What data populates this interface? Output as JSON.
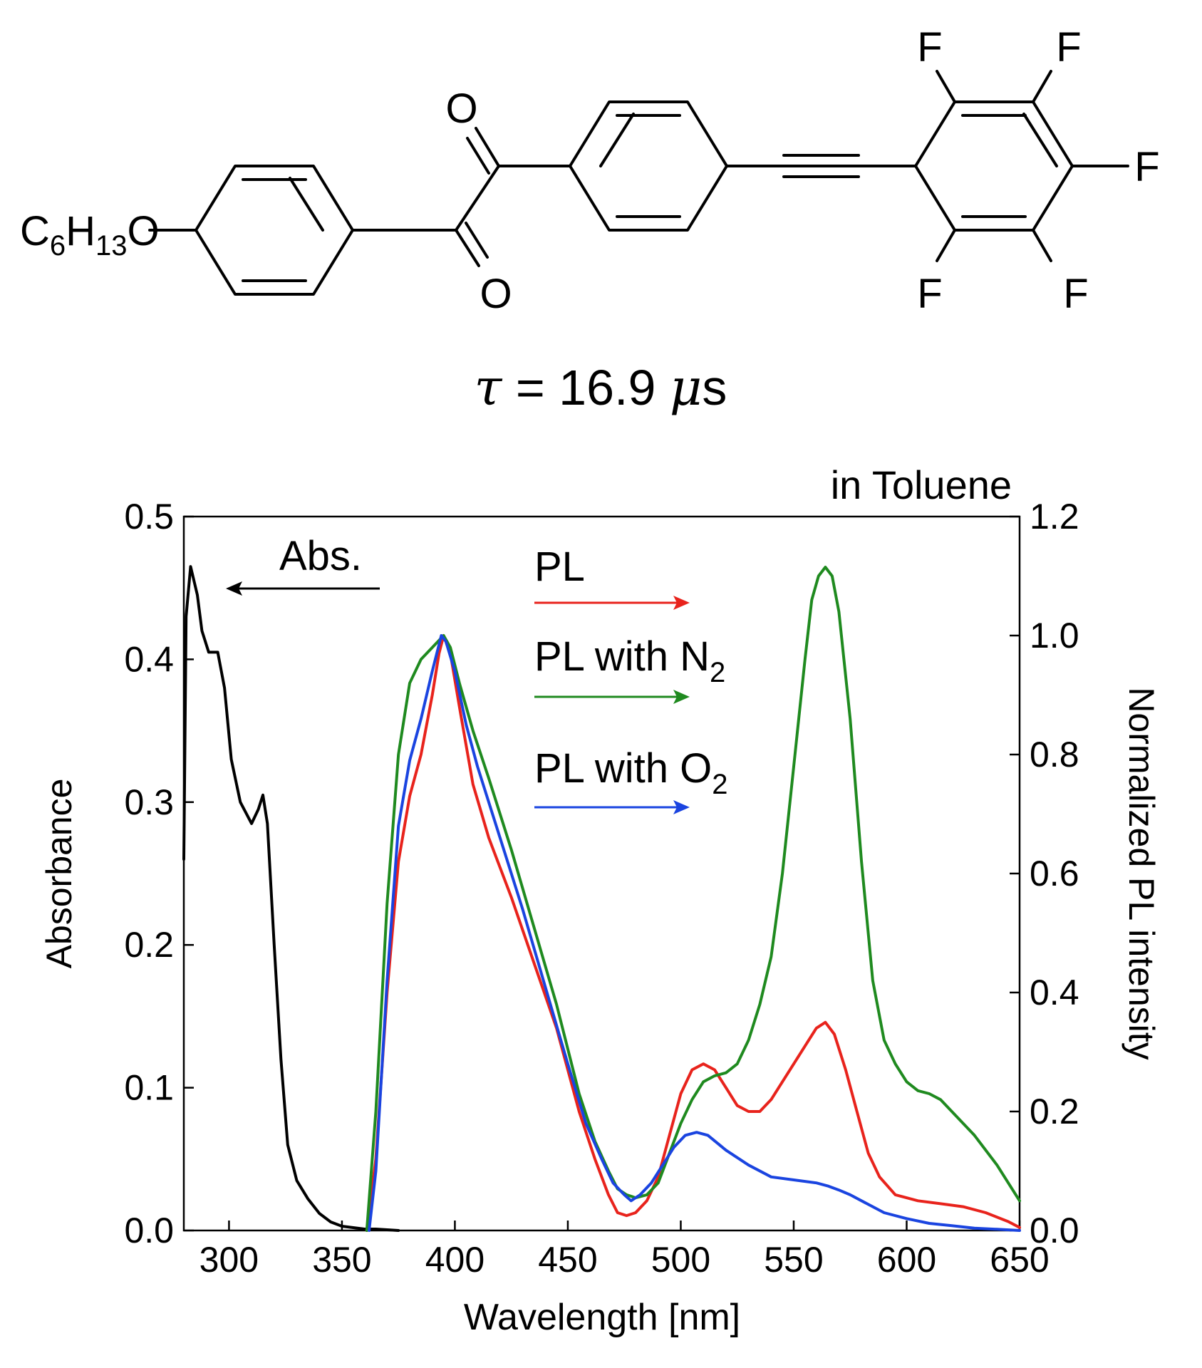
{
  "molecule": {
    "substituent": {
      "main": "C",
      "sub1": "6",
      "mid": "H",
      "sub2": "13",
      "end": "O"
    },
    "oxygen_top": "O",
    "oxygen_bottom": "O",
    "fluorine": "F"
  },
  "lifetime": {
    "symbol": "τ",
    "equals_value": " = 16.9 ",
    "unit_symbol": "μ",
    "unit_rest": "s"
  },
  "chart_data": {
    "type": "line",
    "solvent_note": "in Toluene",
    "xlabel": "Wavelength [nm]",
    "ylabel_left": "Absorbance",
    "ylabel_right": "Normalized PL intensity",
    "xlim": [
      280,
      650
    ],
    "ylim_left": [
      0,
      0.5
    ],
    "ylim_right": [
      0,
      1.2
    ],
    "x_ticks": [
      "300",
      "350",
      "400",
      "450",
      "500",
      "550",
      "600",
      "650"
    ],
    "x_tick_values": [
      300,
      350,
      400,
      450,
      500,
      550,
      600,
      650
    ],
    "y_left_ticks": [
      "0.0",
      "0.1",
      "0.2",
      "0.3",
      "0.4",
      "0.5"
    ],
    "y_left_tick_values": [
      0,
      0.1,
      0.2,
      0.3,
      0.4,
      0.5
    ],
    "y_right_ticks": [
      "0.0",
      "0.2",
      "0.4",
      "0.6",
      "0.8",
      "1.0",
      "1.2"
    ],
    "y_right_tick_values": [
      0,
      0.2,
      0.4,
      0.6,
      0.8,
      1.0,
      1.2
    ],
    "grid": false,
    "annotations": {
      "abs": "Abs.",
      "pl": "PL",
      "pl_n2": {
        "main": "PL with N",
        "sub": "2"
      },
      "pl_o2": {
        "main": "PL with O",
        "sub": "2"
      }
    },
    "colors": {
      "abs": "#000000",
      "pl": "#e8231c",
      "pl_n2": "#1f8a1f",
      "pl_o2": "#1a44e0"
    },
    "series": [
      {
        "key": "abs",
        "axis": "left",
        "color": "#000000",
        "x": [
          280,
          281,
          283,
          286,
          288,
          291,
          295,
          298,
          301,
          305,
          310,
          313,
          315,
          317,
          320,
          323,
          326,
          330,
          335,
          340,
          345,
          350,
          355,
          360,
          365,
          370,
          375
        ],
        "y": [
          0.26,
          0.43,
          0.465,
          0.445,
          0.42,
          0.405,
          0.405,
          0.38,
          0.33,
          0.3,
          0.285,
          0.295,
          0.305,
          0.285,
          0.2,
          0.12,
          0.06,
          0.035,
          0.022,
          0.012,
          0.006,
          0.003,
          0.002,
          0.001,
          0.001,
          0.0005,
          0.0
        ]
      },
      {
        "key": "pl",
        "axis": "right",
        "color": "#e8231c",
        "x": [
          361,
          365,
          370,
          375,
          380,
          385,
          390,
          393,
          395,
          398,
          402,
          408,
          415,
          425,
          435,
          445,
          455,
          462,
          468,
          472,
          476,
          480,
          485,
          490,
          495,
          500,
          505,
          510,
          515,
          520,
          525,
          530,
          535,
          540,
          545,
          550,
          555,
          560,
          564,
          568,
          573,
          578,
          583,
          588,
          595,
          605,
          615,
          625,
          635,
          645,
          650
        ],
        "y": [
          0.0,
          0.12,
          0.4,
          0.62,
          0.73,
          0.8,
          0.9,
          0.97,
          1.0,
          0.97,
          0.88,
          0.75,
          0.66,
          0.56,
          0.45,
          0.34,
          0.2,
          0.12,
          0.06,
          0.03,
          0.025,
          0.03,
          0.05,
          0.09,
          0.16,
          0.23,
          0.27,
          0.28,
          0.27,
          0.24,
          0.21,
          0.2,
          0.2,
          0.22,
          0.25,
          0.28,
          0.31,
          0.34,
          0.35,
          0.33,
          0.27,
          0.2,
          0.13,
          0.09,
          0.06,
          0.05,
          0.045,
          0.04,
          0.03,
          0.015,
          0.005
        ]
      },
      {
        "key": "pl_n2",
        "axis": "right",
        "color": "#1f8a1f",
        "x": [
          361,
          365,
          370,
          375,
          380,
          385,
          390,
          395,
          398,
          402,
          408,
          415,
          425,
          435,
          445,
          455,
          462,
          468,
          472,
          476,
          480,
          485,
          490,
          495,
          500,
          505,
          510,
          515,
          520,
          525,
          530,
          535,
          540,
          545,
          550,
          555,
          558,
          561,
          564,
          567,
          570,
          575,
          580,
          585,
          590,
          595,
          600,
          605,
          610,
          615,
          620,
          630,
          640,
          650
        ],
        "y": [
          0.0,
          0.2,
          0.55,
          0.8,
          0.92,
          0.96,
          0.98,
          1.0,
          0.98,
          0.92,
          0.84,
          0.76,
          0.64,
          0.51,
          0.38,
          0.23,
          0.15,
          0.1,
          0.07,
          0.06,
          0.055,
          0.06,
          0.08,
          0.13,
          0.18,
          0.22,
          0.25,
          0.26,
          0.265,
          0.28,
          0.32,
          0.38,
          0.46,
          0.6,
          0.78,
          0.96,
          1.06,
          1.1,
          1.115,
          1.1,
          1.04,
          0.86,
          0.62,
          0.42,
          0.32,
          0.28,
          0.25,
          0.235,
          0.23,
          0.22,
          0.2,
          0.16,
          0.11,
          0.05
        ]
      },
      {
        "key": "pl_o2",
        "axis": "right",
        "color": "#1a44e0",
        "x": [
          362,
          365,
          370,
          375,
          380,
          385,
          390,
          394,
          396,
          400,
          405,
          410,
          420,
          430,
          440,
          450,
          458,
          465,
          470,
          475,
          478,
          482,
          487,
          492,
          497,
          502,
          507,
          512,
          520,
          530,
          540,
          550,
          560,
          565,
          570,
          575,
          580,
          585,
          590,
          600,
          610,
          620,
          630,
          640,
          650
        ],
        "y": [
          0.0,
          0.1,
          0.42,
          0.68,
          0.79,
          0.86,
          0.94,
          1.0,
          0.99,
          0.94,
          0.85,
          0.78,
          0.66,
          0.54,
          0.41,
          0.28,
          0.18,
          0.12,
          0.08,
          0.06,
          0.05,
          0.06,
          0.08,
          0.11,
          0.14,
          0.16,
          0.165,
          0.16,
          0.135,
          0.11,
          0.09,
          0.085,
          0.08,
          0.075,
          0.068,
          0.06,
          0.05,
          0.04,
          0.03,
          0.02,
          0.012,
          0.008,
          0.004,
          0.002,
          0.0
        ]
      }
    ]
  }
}
